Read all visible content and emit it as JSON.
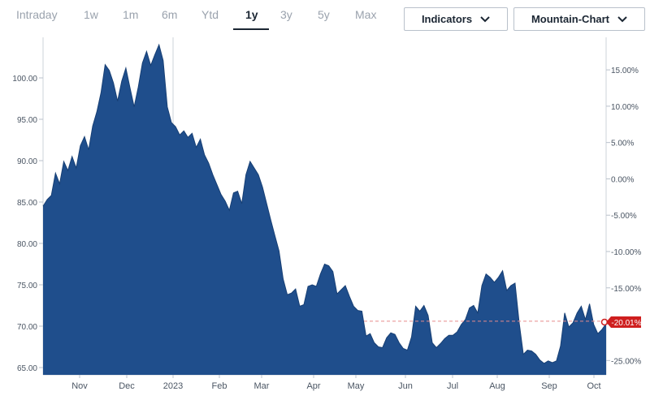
{
  "range_tabs": [
    "Intraday",
    "1w",
    "1m",
    "6m",
    "Ytd",
    "1y",
    "3y",
    "5y",
    "Max"
  ],
  "active_tab": "1y",
  "indicators_label": "Indicators",
  "chart_type_label": "Mountain-Chart",
  "colors": {
    "fill": "#1f4e8c",
    "line": "#173f74",
    "badge": "#cf1f1f",
    "active_tab": "#1b2633",
    "inactive_tab": "#9aa2ad"
  },
  "current_change_label": "-20.01%",
  "chart_data": {
    "type": "area",
    "x_tick_labels": [
      "Nov",
      "Dec",
      "2023",
      "Feb",
      "Mar",
      "Apr",
      "May",
      "Jun",
      "Jul",
      "Aug",
      "Sep",
      "Oct"
    ],
    "y_tick_labels": [
      "100.00",
      "95.00",
      "90.00",
      "85.00",
      "80.00",
      "75.00",
      "70.00",
      "65.00"
    ],
    "pct_tick_labels": [
      "15.00%",
      "10.00%",
      "5.00%",
      "0.00%",
      "-5.00%",
      "-10.00%",
      "-15.00%",
      "-20.00%",
      "-25.00%"
    ],
    "ylim": [
      64.5,
      104.5
    ],
    "reference_value": 70.6,
    "grid": true,
    "series": [
      {
        "values": [
          84.5,
          85.3,
          85.8,
          88.5,
          87.2,
          89.9,
          88.8,
          90.5,
          89.1,
          91.8,
          92.9,
          91.3,
          94.2,
          95.9,
          98.2,
          101.6,
          100.9,
          99.4,
          97.2,
          99.6,
          101.2,
          98.8,
          96.5,
          98.9,
          101.8,
          103.2,
          101.5,
          102.8,
          104.0,
          102.1,
          96.5,
          94.6,
          94.1,
          93.1,
          93.6,
          92.8,
          93.3,
          91.6,
          92.6,
          90.7,
          89.7,
          88.3,
          87.1,
          85.9,
          85.1,
          84.0,
          86.1,
          86.3,
          84.8,
          88.3,
          89.9,
          89.1,
          88.3,
          86.8,
          84.8,
          82.8,
          80.9,
          79.1,
          75.7,
          73.8,
          74.0,
          74.5,
          72.4,
          72.6,
          74.8,
          75.0,
          74.8,
          76.3,
          77.5,
          77.3,
          76.6,
          73.9,
          74.4,
          74.9,
          73.6,
          72.4,
          71.9,
          71.8,
          68.8,
          69.1,
          68.0,
          67.5,
          67.4,
          68.6,
          69.2,
          69.0,
          68.0,
          67.3,
          67.1,
          68.7,
          72.4,
          71.8,
          72.5,
          71.3,
          68.0,
          67.4,
          67.9,
          68.5,
          68.9,
          68.9,
          69.3,
          70.2,
          70.8,
          72.2,
          72.5,
          71.6,
          74.9,
          76.3,
          75.9,
          75.3,
          75.9,
          76.7,
          74.3,
          74.9,
          75.2,
          70.4,
          66.6,
          67.1,
          67.0,
          66.6,
          65.9,
          65.5,
          65.8,
          65.6,
          65.8,
          67.6,
          71.6,
          69.9,
          70.4,
          71.6,
          72.4,
          70.8,
          72.7,
          70.2,
          69.1,
          69.6,
          70.3
        ]
      }
    ]
  }
}
